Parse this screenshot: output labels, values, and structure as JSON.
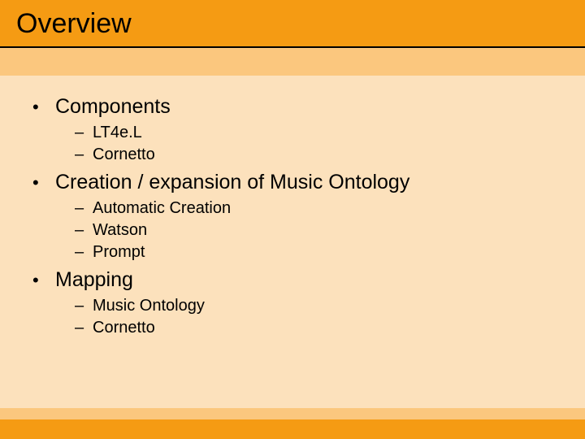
{
  "colors": {
    "header_bg": "#f59b13",
    "band_bg": "#fbc77e",
    "body_bg": "#fce1bc",
    "title_underline": "#000000",
    "text": "#000000"
  },
  "typography": {
    "title_fontsize": 34,
    "level1_fontsize": 25,
    "level2_fontsize": 20,
    "font_family": "Arial"
  },
  "title": "Overview",
  "markers": {
    "level1": "•",
    "level2": "–"
  },
  "bullets": [
    {
      "text": "Components",
      "sub": [
        "LT4e.L",
        "Cornetto"
      ]
    },
    {
      "text": "Creation / expansion of Music Ontology",
      "sub": [
        "Automatic Creation",
        "Watson",
        "Prompt"
      ]
    },
    {
      "text": "Mapping",
      "sub": [
        "Music Ontology",
        "Cornetto"
      ]
    }
  ]
}
